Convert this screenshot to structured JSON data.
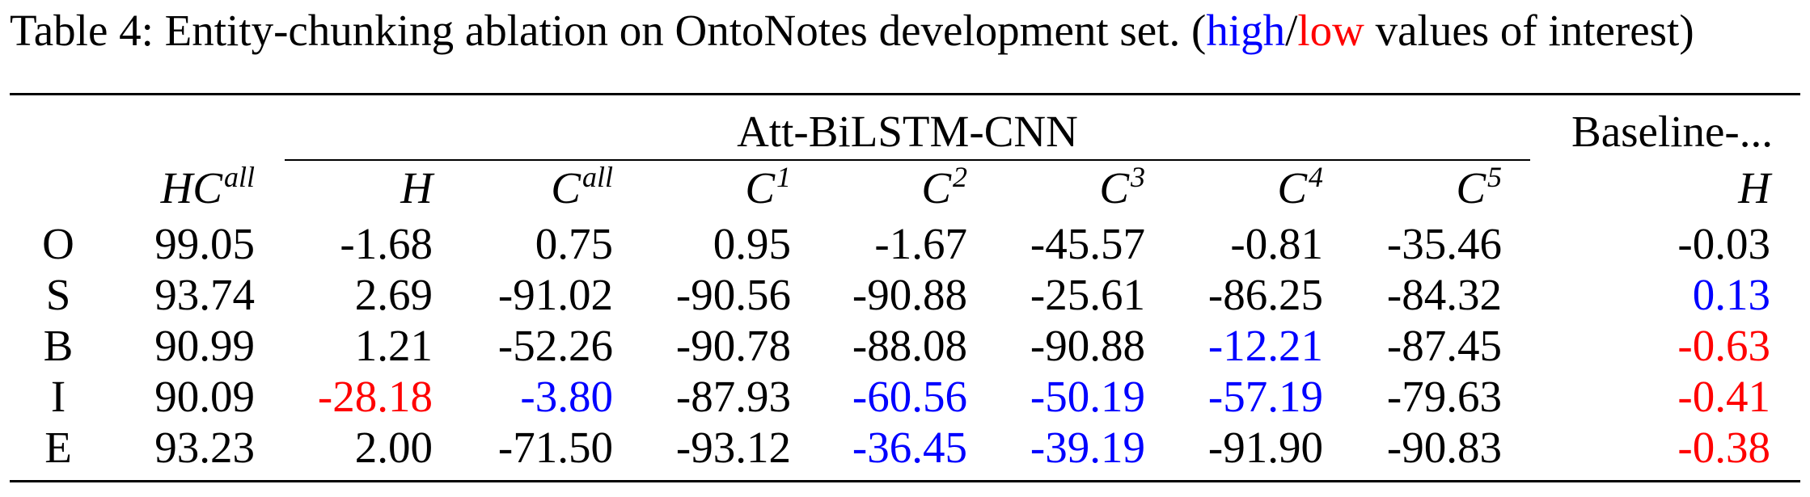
{
  "caption": {
    "prefix": "Table 4:  Entity-chunking ablation on OntoNotes development set. (",
    "high": "high",
    "slash": "/",
    "low": "low",
    "suffix": " values of interest)"
  },
  "colors": {
    "high": "#0000ff",
    "low": "#ff0000",
    "normal": "#000000"
  },
  "table": {
    "group_headers": {
      "att": "Att-BiLSTM-CNN",
      "baseline": "Baseline-..."
    },
    "columns": [
      {
        "base": "HC",
        "sup": "all"
      },
      {
        "base": "H",
        "sup": ""
      },
      {
        "base": "C",
        "sup": "all"
      },
      {
        "base": "C",
        "sup": "1"
      },
      {
        "base": "C",
        "sup": "2"
      },
      {
        "base": "C",
        "sup": "3"
      },
      {
        "base": "C",
        "sup": "4"
      },
      {
        "base": "C",
        "sup": "5"
      },
      {
        "base": "H",
        "sup": ""
      }
    ],
    "rows": [
      {
        "label": "O",
        "cells": [
          {
            "v": "99.05",
            "c": "normal"
          },
          {
            "v": "-1.68",
            "c": "normal"
          },
          {
            "v": "0.75",
            "c": "normal"
          },
          {
            "v": "0.95",
            "c": "normal"
          },
          {
            "v": "-1.67",
            "c": "normal"
          },
          {
            "v": "-45.57",
            "c": "normal"
          },
          {
            "v": "-0.81",
            "c": "normal"
          },
          {
            "v": "-35.46",
            "c": "normal"
          },
          {
            "v": "-0.03",
            "c": "normal"
          }
        ]
      },
      {
        "label": "S",
        "cells": [
          {
            "v": "93.74",
            "c": "normal"
          },
          {
            "v": "2.69",
            "c": "normal"
          },
          {
            "v": "-91.02",
            "c": "normal"
          },
          {
            "v": "-90.56",
            "c": "normal"
          },
          {
            "v": "-90.88",
            "c": "normal"
          },
          {
            "v": "-25.61",
            "c": "normal"
          },
          {
            "v": "-86.25",
            "c": "normal"
          },
          {
            "v": "-84.32",
            "c": "normal"
          },
          {
            "v": "0.13",
            "c": "high"
          }
        ]
      },
      {
        "label": "B",
        "cells": [
          {
            "v": "90.99",
            "c": "normal"
          },
          {
            "v": "1.21",
            "c": "normal"
          },
          {
            "v": "-52.26",
            "c": "normal"
          },
          {
            "v": "-90.78",
            "c": "normal"
          },
          {
            "v": "-88.08",
            "c": "normal"
          },
          {
            "v": "-90.88",
            "c": "normal"
          },
          {
            "v": "-12.21",
            "c": "high"
          },
          {
            "v": "-87.45",
            "c": "normal"
          },
          {
            "v": "-0.63",
            "c": "low"
          }
        ]
      },
      {
        "label": "I",
        "cells": [
          {
            "v": "90.09",
            "c": "normal"
          },
          {
            "v": "-28.18",
            "c": "low"
          },
          {
            "v": "-3.80",
            "c": "high"
          },
          {
            "v": "-87.93",
            "c": "normal"
          },
          {
            "v": "-60.56",
            "c": "high"
          },
          {
            "v": "-50.19",
            "c": "high"
          },
          {
            "v": "-57.19",
            "c": "high"
          },
          {
            "v": "-79.63",
            "c": "normal"
          },
          {
            "v": "-0.41",
            "c": "low"
          }
        ]
      },
      {
        "label": "E",
        "cells": [
          {
            "v": "93.23",
            "c": "normal"
          },
          {
            "v": "2.00",
            "c": "normal"
          },
          {
            "v": "-71.50",
            "c": "normal"
          },
          {
            "v": "-93.12",
            "c": "normal"
          },
          {
            "v": "-36.45",
            "c": "high"
          },
          {
            "v": "-39.19",
            "c": "high"
          },
          {
            "v": "-91.90",
            "c": "normal"
          },
          {
            "v": "-90.83",
            "c": "normal"
          },
          {
            "v": "-0.38",
            "c": "low"
          }
        ]
      }
    ]
  }
}
